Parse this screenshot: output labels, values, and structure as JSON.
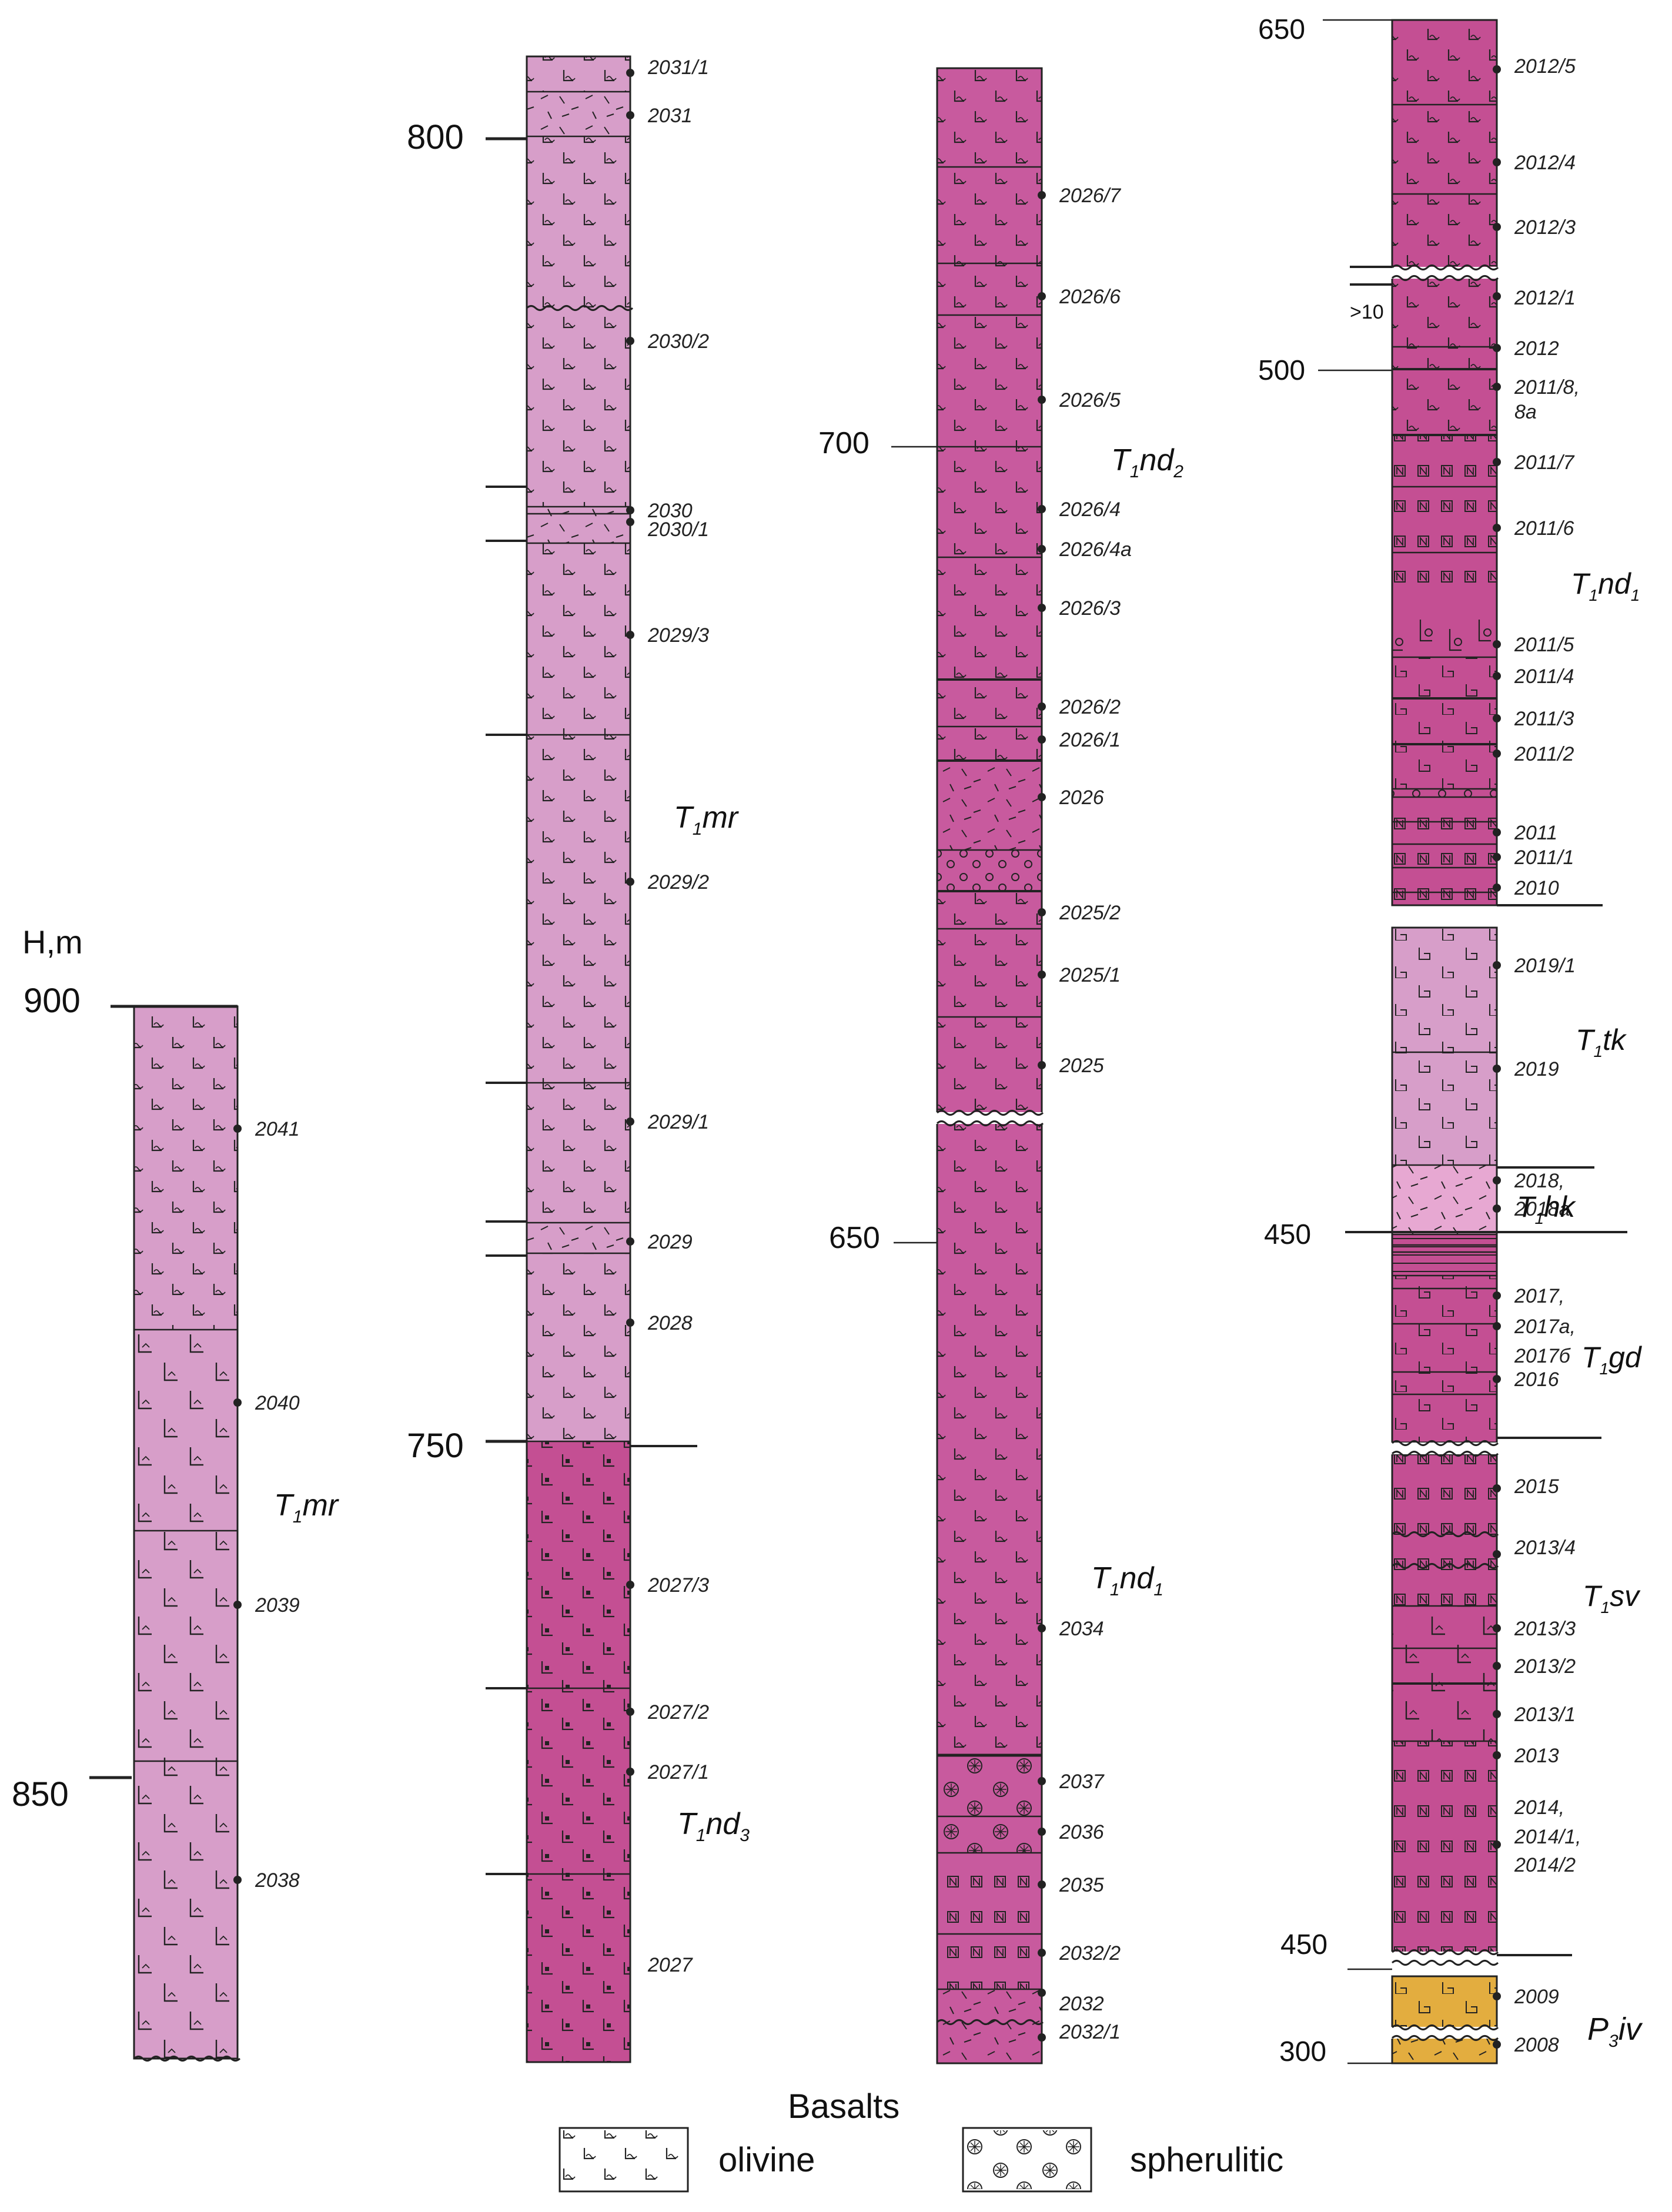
{
  "axis_title": "H,m",
  "colors": {
    "light": "#d79ec9",
    "medium": "#c85a9e",
    "dark": "#c44f93",
    "speckled": "#e7a8d2",
    "yellow": "#e3ad3f",
    "line": "#222222"
  },
  "columns": [
    {
      "id": "c1",
      "ticks": [
        {
          "label": "900"
        },
        {
          "label": "850"
        }
      ],
      "samples": [
        "2041",
        "2040",
        "2039",
        "2038"
      ],
      "formations": [
        {
          "prefix": "T",
          "sub": "1",
          "name": "mr"
        }
      ],
      "other_labels": []
    },
    {
      "id": "c2",
      "ticks": [
        {
          "label": "800"
        },
        {
          "label": "750"
        }
      ],
      "samples": [
        "2031/1",
        "2031",
        "2030/2",
        "2030",
        "2030/1",
        "2029/3",
        "2029/2",
        "2029/1",
        "2029",
        "2028",
        "2027/3",
        "2027/2",
        "2027/1",
        "2027"
      ],
      "formations": [
        {
          "prefix": "T",
          "sub": "1",
          "name": "mr"
        },
        {
          "prefix": "T",
          "sub": "1",
          "name": "nd",
          "tail": "3"
        }
      ],
      "other_labels": []
    },
    {
      "id": "c3",
      "ticks": [
        {
          "label": "700"
        },
        {
          "label": "650"
        }
      ],
      "samples": [
        "2026/7",
        "2026/6",
        "2026/5",
        "2026/4",
        "2026/4a",
        "2026/3",
        "2026/2",
        "2026/1",
        "2026",
        "2025/2",
        "2025/1",
        "2025",
        "2034",
        "2037",
        "2036",
        "2035",
        "2032/2",
        "2032",
        "2032/1"
      ],
      "formations": [
        {
          "prefix": "T",
          "sub": "1",
          "name": "nd",
          "tail": "2"
        },
        {
          "prefix": "T",
          "sub": "1",
          "name": "nd",
          "tail": "1"
        }
      ],
      "other_labels": []
    },
    {
      "id": "c4",
      "ticks": [
        {
          "label": "650"
        },
        {
          "label": "500"
        },
        {
          "label": "450"
        },
        {
          "label": "450"
        },
        {
          "label": "300"
        }
      ],
      "samples": [
        "2012/5",
        "2012/4",
        "2012/3",
        "2012/1",
        "2012",
        "2011/8,",
        "8a",
        "2011/7",
        "2011/6",
        "2011/5",
        "2011/4",
        "2011/3",
        "2011/2",
        "2011",
        "2011/1",
        "2010",
        "2019/1",
        "2019",
        "2018,",
        "2018a",
        "2017,",
        "2017a,",
        "2017б",
        "2016",
        "2015",
        "2013/4",
        "2013/3",
        "2013/2",
        "2013/1",
        "2013",
        "2014,",
        "2014/1,",
        "2014/2",
        "2009",
        "2008"
      ],
      "formations": [
        {
          "prefix": "T",
          "sub": "1",
          "name": "nd",
          "tail": "1"
        },
        {
          "prefix": "T",
          "sub": "1",
          "name": "tk"
        },
        {
          "prefix": "T",
          "sub": "1",
          "name": "hk"
        },
        {
          "prefix": "T",
          "sub": "1",
          "name": "gd"
        },
        {
          "prefix": "T",
          "sub": "1",
          "name": "sv"
        },
        {
          "prefix": "P",
          "sub": "3",
          "name": "iv"
        }
      ],
      "other_labels": [
        ">10"
      ]
    }
  ],
  "legend": {
    "title": "Basalts",
    "items": [
      {
        "label": "olivine",
        "icon": "olivine-symbol"
      },
      {
        "label": "spherulitic",
        "icon": "spherulitic-symbol"
      }
    ]
  }
}
